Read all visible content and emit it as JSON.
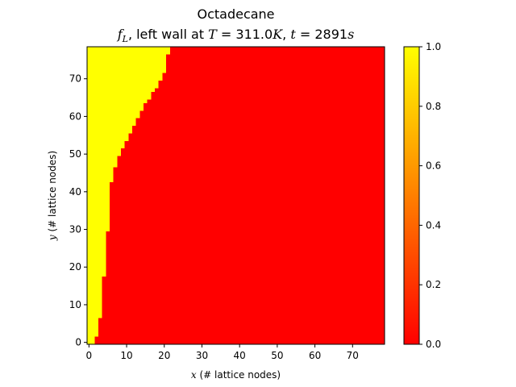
{
  "chart_data": {
    "type": "heatmap",
    "title": "Octadecane",
    "subtitle_parts": {
      "quantity": "f",
      "quantity_sub": "L",
      "text_mid": ", left wall at ",
      "T_sym": "T",
      "eq1": " = 311.0",
      "K_sym": "K",
      "comma": ", ",
      "t_sym": "t",
      "eq2": " = 2891",
      "s_sym": "s"
    },
    "xlabel_var": "x",
    "xlabel": " (# lattice nodes)",
    "ylabel_var": "y",
    "ylabel": " (# lattice nodes)",
    "grid_size": [
      79,
      79
    ],
    "xlim": [
      -0.5,
      78.5
    ],
    "ylim": [
      -0.5,
      78.5
    ],
    "xticks": [
      0,
      10,
      20,
      30,
      40,
      50,
      60,
      70
    ],
    "yticks": [
      0,
      10,
      20,
      30,
      40,
      50,
      60,
      70
    ],
    "melt_front": {
      "description_note": "",
      "y": [
        0,
        2,
        7,
        12,
        18,
        25,
        30,
        37,
        43,
        47,
        50,
        52,
        54,
        56,
        58,
        60,
        62,
        64,
        66,
        68,
        70,
        72,
        75,
        78
      ],
      "x": [
        1.5,
        2.5,
        3.5,
        4,
        4.5,
        5,
        5.5,
        6,
        6.5,
        7.5,
        8.5,
        9.5,
        10.5,
        11.5,
        12.5,
        13.5,
        14.5,
        16,
        17,
        18.5,
        19.5,
        20.5,
        21,
        22
      ]
    },
    "inside_value": 1.0,
    "outside_value": 0.0,
    "colormap": "autumn",
    "colorbar": {
      "min": 0.0,
      "max": 1.0,
      "ticks": [
        "0.0",
        "0.2",
        "0.4",
        "0.6",
        "0.8",
        "1.0"
      ],
      "tick_values": [
        0.0,
        0.2,
        0.4,
        0.6,
        0.8,
        1.0
      ]
    },
    "colors": {
      "liquid": "#ffff00",
      "solid": "#ff0000",
      "interface": "#ff8000"
    }
  }
}
